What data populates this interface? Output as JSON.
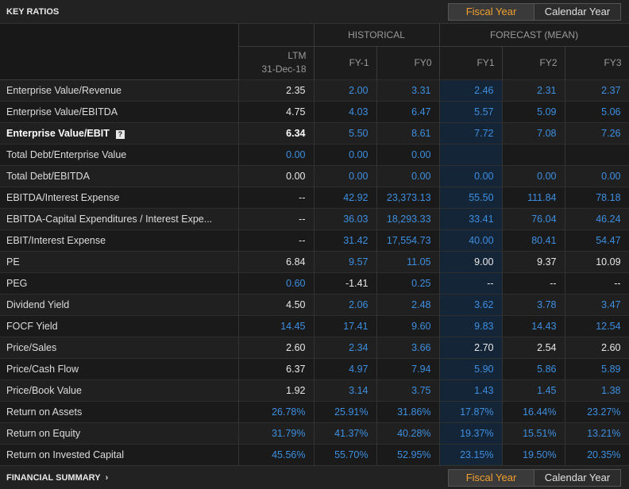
{
  "header": {
    "title": "KEY RATIOS",
    "toggle": {
      "fiscal": "Fiscal Year",
      "calendar": "Calendar Year"
    }
  },
  "footer": {
    "title": "FINANCIAL SUMMARY",
    "chevron": "›",
    "toggle": {
      "fiscal": "Fiscal Year",
      "calendar": "Calendar Year"
    }
  },
  "columns": {
    "groups": {
      "historical": "HISTORICAL",
      "forecast": "FORECAST (MEAN)"
    },
    "ltm_line1": "LTM",
    "ltm_line2": "31-Dec-18",
    "fy_m1": "FY-1",
    "fy0": "FY0",
    "fy1": "FY1",
    "fy2": "FY2",
    "fy3": "FY3"
  },
  "rows": [
    {
      "label": "Enterprise Value/Revenue",
      "values": [
        "2.35",
        "2.00",
        "3.31",
        "2.46",
        "2.31",
        "2.37"
      ],
      "colors": [
        "w",
        "b",
        "b",
        "b",
        "b",
        "b"
      ]
    },
    {
      "label": "Enterprise Value/EBITDA",
      "values": [
        "4.75",
        "4.03",
        "6.47",
        "5.57",
        "5.09",
        "5.06"
      ],
      "colors": [
        "w",
        "b",
        "b",
        "b",
        "b",
        "b"
      ]
    },
    {
      "label": "Enterprise Value/EBIT",
      "help": "?",
      "values": [
        "6.34",
        "5.50",
        "8.61",
        "7.72",
        "7.08",
        "7.26"
      ],
      "colors": [
        "w",
        "b",
        "b",
        "b",
        "b",
        "b"
      ]
    },
    {
      "label": "Total Debt/Enterprise Value",
      "values": [
        "0.00",
        "0.00",
        "0.00",
        "",
        "",
        ""
      ],
      "colors": [
        "b",
        "b",
        "b",
        "b",
        "b",
        "b"
      ]
    },
    {
      "label": "Total Debt/EBITDA",
      "values": [
        "0.00",
        "0.00",
        "0.00",
        "0.00",
        "0.00",
        "0.00"
      ],
      "colors": [
        "w",
        "b",
        "b",
        "b",
        "b",
        "b"
      ]
    },
    {
      "label": "EBITDA/Interest Expense",
      "values": [
        "--",
        "42.92",
        "23,373.13",
        "55.50",
        "111.84",
        "78.18"
      ],
      "colors": [
        "w",
        "b",
        "b",
        "b",
        "b",
        "b"
      ]
    },
    {
      "label": "EBITDA-Capital Expenditures / Interest Expe...",
      "values": [
        "--",
        "36.03",
        "18,293.33",
        "33.41",
        "76.04",
        "46.24"
      ],
      "colors": [
        "w",
        "b",
        "b",
        "b",
        "b",
        "b"
      ]
    },
    {
      "label": "EBIT/Interest Expense",
      "values": [
        "--",
        "31.42",
        "17,554.73",
        "40.00",
        "80.41",
        "54.47"
      ],
      "colors": [
        "w",
        "b",
        "b",
        "b",
        "b",
        "b"
      ]
    },
    {
      "label": "PE",
      "values": [
        "6.84",
        "9.57",
        "11.05",
        "9.00",
        "9.37",
        "10.09"
      ],
      "colors": [
        "w",
        "b",
        "b",
        "w",
        "w",
        "w"
      ]
    },
    {
      "label": "PEG",
      "values": [
        "0.60",
        "-1.41",
        "0.25",
        "--",
        "--",
        "--"
      ],
      "colors": [
        "b",
        "w",
        "b",
        "w",
        "w",
        "w"
      ]
    },
    {
      "label": "Dividend Yield",
      "values": [
        "4.50",
        "2.06",
        "2.48",
        "3.62",
        "3.78",
        "3.47"
      ],
      "colors": [
        "w",
        "b",
        "b",
        "b",
        "b",
        "b"
      ]
    },
    {
      "label": "FOCF Yield",
      "values": [
        "14.45",
        "17.41",
        "9.60",
        "9.83",
        "14.43",
        "12.54"
      ],
      "colors": [
        "b",
        "b",
        "b",
        "b",
        "b",
        "b"
      ]
    },
    {
      "label": "Price/Sales",
      "values": [
        "2.60",
        "2.34",
        "3.66",
        "2.70",
        "2.54",
        "2.60"
      ],
      "colors": [
        "w",
        "b",
        "b",
        "w",
        "w",
        "w"
      ]
    },
    {
      "label": "Price/Cash Flow",
      "values": [
        "6.37",
        "4.97",
        "7.94",
        "5.90",
        "5.86",
        "5.89"
      ],
      "colors": [
        "w",
        "b",
        "b",
        "b",
        "b",
        "b"
      ]
    },
    {
      "label": "Price/Book Value",
      "values": [
        "1.92",
        "3.14",
        "3.75",
        "1.43",
        "1.45",
        "1.38"
      ],
      "colors": [
        "w",
        "b",
        "b",
        "b",
        "b",
        "b"
      ]
    },
    {
      "label": "Return on Assets",
      "values": [
        "26.78%",
        "25.91%",
        "31.86%",
        "17.87%",
        "16.44%",
        "23.27%"
      ],
      "colors": [
        "b",
        "b",
        "b",
        "b",
        "b",
        "b"
      ]
    },
    {
      "label": "Return on Equity",
      "values": [
        "31.79%",
        "41.37%",
        "40.28%",
        "19.37%",
        "15.51%",
        "13.21%"
      ],
      "colors": [
        "b",
        "b",
        "b",
        "b",
        "b",
        "b"
      ]
    },
    {
      "label": "Return on Invested Capital",
      "values": [
        "45.56%",
        "55.70%",
        "52.95%",
        "23.15%",
        "19.50%",
        "20.35%"
      ],
      "colors": [
        "b",
        "b",
        "b",
        "b",
        "b",
        "b"
      ]
    }
  ]
}
